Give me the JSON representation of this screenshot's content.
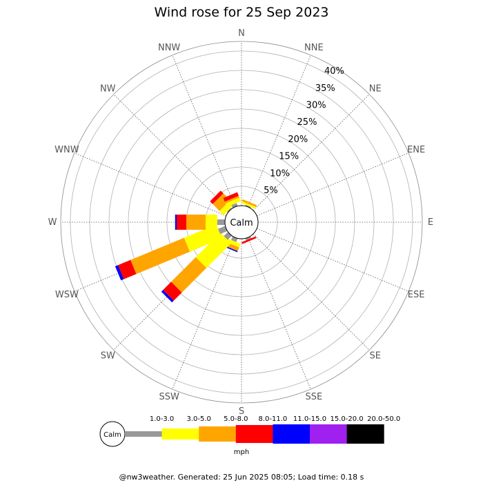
{
  "title": "Wind rose for 25 Sep 2023",
  "footer": "@nw3weather. Generated: 25 Jun 2025 08:05; Load time: 0.18 s",
  "chart_data": {
    "type": "windrose",
    "title": "Wind rose for 25 Sep 2023",
    "unit": "mph",
    "calm_label": "Calm",
    "directions": [
      "N",
      "NNE",
      "NE",
      "ENE",
      "E",
      "ESE",
      "SE",
      "SSE",
      "S",
      "SSW",
      "SW",
      "WSW",
      "W",
      "WNW",
      "NW",
      "NNW"
    ],
    "ring_labels": [
      "5%",
      "10%",
      "15%",
      "20%",
      "25%",
      "30%",
      "35%",
      "40%"
    ],
    "rings": [
      5,
      10,
      15,
      20,
      25,
      30,
      35,
      40
    ],
    "speed_bins": [
      "1.0-3.0",
      "3.0-5.0",
      "5.0-8.0",
      "8.0-11.0",
      "11.0-15.0",
      "15.0-20.0",
      "20.0-50.0"
    ],
    "colors": [
      "#999999",
      "#ffff00",
      "#ffa500",
      "#ff0000",
      "#0000ff",
      "#a020f0",
      "#000000"
    ],
    "data": {
      "N": [
        0.0,
        0.0,
        0.0,
        0.0,
        0.0,
        0.0,
        0.0
      ],
      "NNE": [
        0.3,
        0.5,
        0.5,
        0.0,
        0.0,
        0.0,
        0.0
      ],
      "NE": [
        0.0,
        0.0,
        0.0,
        0.0,
        0.0,
        0.0,
        0.0
      ],
      "ENE": [
        0.0,
        0.0,
        0.0,
        0.0,
        0.0,
        0.0,
        0.0
      ],
      "E": [
        0.0,
        0.0,
        0.0,
        0.0,
        0.0,
        0.0,
        0.0
      ],
      "ESE": [
        0.0,
        0.0,
        0.0,
        0.0,
        0.0,
        0.0,
        0.0
      ],
      "SE": [
        0.0,
        0.0,
        0.0,
        0.0,
        0.0,
        0.0,
        0.0
      ],
      "SSE": [
        0.5,
        0.0,
        0.0,
        0.5,
        0.0,
        0.0,
        0.0
      ],
      "S": [
        0.0,
        0.0,
        0.0,
        0.0,
        0.0,
        0.0,
        0.0
      ],
      "SSW": [
        1.0,
        1.0,
        1.0,
        0.0,
        0.3,
        0.0,
        0.0
      ],
      "SW": [
        1.5,
        9.0,
        9.0,
        3.0,
        0.6,
        0.0,
        0.0
      ],
      "WSW": [
        2.0,
        9.0,
        15.0,
        3.5,
        0.8,
        0.0,
        0.0
      ],
      "W": [
        2.0,
        3.0,
        5.0,
        2.5,
        0.4,
        0.0,
        0.0
      ],
      "WNW": [
        0.0,
        0.0,
        0.0,
        0.0,
        0.0,
        0.0,
        0.0
      ],
      "NW": [
        0.3,
        1.5,
        2.5,
        1.0,
        0.0,
        0.0,
        0.0
      ],
      "NNW": [
        0.8,
        1.0,
        0.5,
        1.0,
        0.0,
        0.0,
        0.0
      ]
    }
  }
}
